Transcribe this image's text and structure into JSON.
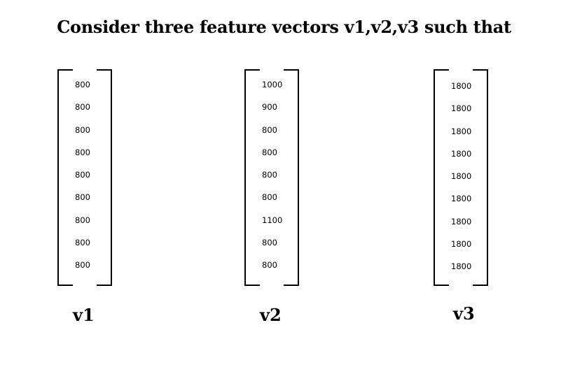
{
  "title": "Consider three feature vectors v1,v2,v3 such that",
  "vectors": [
    {
      "label": "v1",
      "values": [
        "800",
        "800",
        "800",
        "800",
        "800",
        "800",
        "800",
        "800",
        "800"
      ]
    },
    {
      "label": "v2",
      "values": [
        "1000",
        "900",
        "800",
        "800",
        "800",
        "800",
        "1100",
        "800",
        "800"
      ]
    },
    {
      "label": "v3",
      "values": [
        "1800",
        "1800",
        "1800",
        "1800",
        "1800",
        "1800",
        "1800",
        "1800",
        "1800"
      ]
    }
  ]
}
